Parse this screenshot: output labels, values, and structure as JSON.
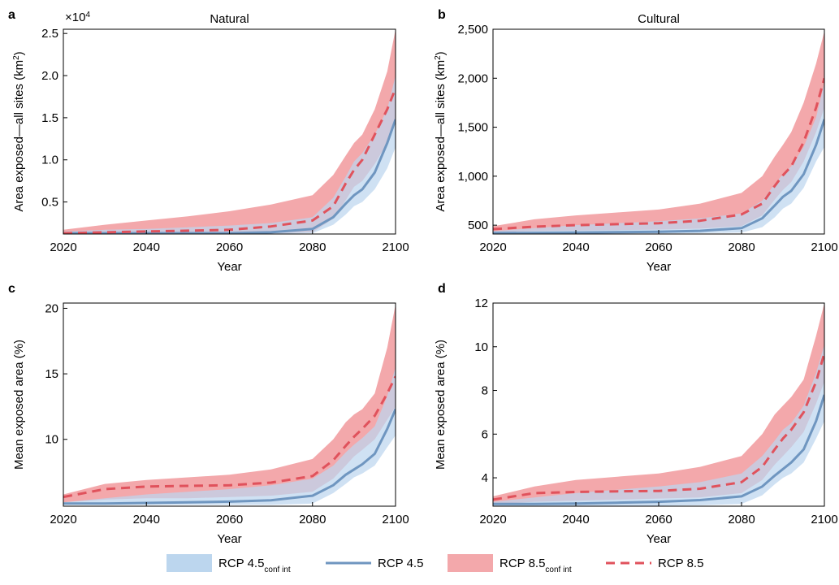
{
  "colors": {
    "rcp45_band": "#bcd6ee",
    "rcp45_line": "#6f96c0",
    "rcp85_band": "#f3a8ab",
    "rcp85_line": "#e0525c",
    "overlap_band": "#c5bcd8"
  },
  "legend": {
    "items": [
      {
        "key": "rcp45ci",
        "base": "RCP 4.5",
        "sub": "conf int"
      },
      {
        "key": "rcp45",
        "base": "RCP 4.5",
        "sub": ""
      },
      {
        "key": "rcp85ci",
        "base": "RCP 8.5",
        "sub": "conf int"
      },
      {
        "key": "rcp85",
        "base": "RCP 8.5",
        "sub": ""
      }
    ]
  },
  "chart_data": [
    {
      "type": "area",
      "panel_label": "a",
      "title": "Natural",
      "xlabel": "Year",
      "ylabel_main": "Area exposed—all sites (km",
      "ylabel_sup": "2",
      "ylabel_end": ")",
      "multiplier_base": "×10",
      "multiplier_exp": "4",
      "xlim": [
        2020,
        2100
      ],
      "ylim": [
        0.12,
        2.55
      ],
      "xticks": [
        2020,
        2040,
        2060,
        2080,
        2100
      ],
      "xtick_labels": [
        "2020",
        "2040",
        "2060",
        "2080",
        "2100"
      ],
      "yticks": [
        0.5,
        1.0,
        1.5,
        2.0,
        2.5
      ],
      "ytick_labels": [
        "0.5",
        "1.0",
        "1.5",
        "2.0",
        "2.5"
      ],
      "x": [
        2020,
        2030,
        2040,
        2050,
        2060,
        2070,
        2080,
        2085,
        2088,
        2090,
        2092,
        2095,
        2098,
        2100
      ],
      "series": [
        {
          "name": "RCP 4.5",
          "values": [
            0.13,
            0.13,
            0.13,
            0.13,
            0.13,
            0.14,
            0.18,
            0.32,
            0.48,
            0.58,
            0.65,
            0.85,
            1.2,
            1.48
          ]
        },
        {
          "name": "RCP 8.5",
          "values": [
            0.13,
            0.14,
            0.15,
            0.16,
            0.17,
            0.21,
            0.28,
            0.45,
            0.72,
            0.88,
            1.0,
            1.3,
            1.6,
            1.85
          ]
        }
      ],
      "bands": [
        {
          "name": "RCP 4.5 conf int",
          "lower": [
            0.12,
            0.12,
            0.12,
            0.12,
            0.12,
            0.12,
            0.13,
            0.23,
            0.35,
            0.45,
            0.5,
            0.65,
            0.9,
            1.15
          ],
          "upper": [
            0.15,
            0.17,
            0.18,
            0.2,
            0.22,
            0.25,
            0.32,
            0.55,
            0.8,
            0.98,
            1.08,
            1.3,
            1.6,
            2.0
          ]
        },
        {
          "name": "RCP 8.5 conf int",
          "lower": [
            0.12,
            0.12,
            0.12,
            0.12,
            0.12,
            0.13,
            0.14,
            0.3,
            0.52,
            0.68,
            0.75,
            0.95,
            1.2,
            1.5
          ],
          "upper": [
            0.17,
            0.23,
            0.28,
            0.33,
            0.39,
            0.47,
            0.58,
            0.82,
            1.05,
            1.2,
            1.3,
            1.6,
            2.05,
            2.55
          ]
        }
      ]
    },
    {
      "type": "area",
      "panel_label": "b",
      "title": "Cultural",
      "xlabel": "Year",
      "ylabel_main": "Area exposed—all sites (km",
      "ylabel_sup": "2",
      "ylabel_end": ")",
      "multiplier_base": "",
      "multiplier_exp": "",
      "xlim": [
        2020,
        2100
      ],
      "ylim": [
        410,
        2500
      ],
      "xticks": [
        2020,
        2040,
        2060,
        2080,
        2100
      ],
      "xtick_labels": [
        "2020",
        "2040",
        "2060",
        "2080",
        "2100"
      ],
      "yticks": [
        500,
        1000,
        1500,
        2000,
        2500
      ],
      "ytick_labels": [
        "500",
        "1,000",
        "1,500",
        "2,000",
        "2,500"
      ],
      "x": [
        2020,
        2030,
        2040,
        2050,
        2060,
        2070,
        2080,
        2085,
        2088,
        2090,
        2092,
        2095,
        2098,
        2100
      ],
      "series": [
        {
          "name": "RCP 4.5",
          "values": [
            420,
            422,
            425,
            428,
            433,
            442,
            470,
            570,
            700,
            790,
            850,
            1020,
            1320,
            1580
          ]
        },
        {
          "name": "RCP 8.5",
          "values": [
            460,
            485,
            500,
            510,
            520,
            545,
            610,
            720,
            900,
            1010,
            1100,
            1350,
            1700,
            2000
          ]
        }
      ],
      "bands": [
        {
          "name": "RCP 4.5 conf int",
          "lower": [
            415,
            415,
            415,
            415,
            415,
            418,
            425,
            480,
            580,
            670,
            720,
            880,
            1150,
            1300
          ],
          "upper": [
            440,
            470,
            500,
            520,
            540,
            570,
            620,
            750,
            920,
            1020,
            1100,
            1300,
            1600,
            1950
          ]
        },
        {
          "name": "RCP 8.5 conf int",
          "lower": [
            430,
            440,
            445,
            450,
            455,
            465,
            490,
            600,
            760,
            860,
            940,
            1150,
            1450,
            1700
          ],
          "upper": [
            490,
            560,
            600,
            630,
            660,
            720,
            830,
            1000,
            1200,
            1320,
            1450,
            1750,
            2150,
            2480
          ]
        }
      ]
    },
    {
      "type": "area",
      "panel_label": "c",
      "title": "",
      "xlabel": "Year",
      "ylabel_main": "Mean exposed area (%)",
      "ylabel_sup": "",
      "ylabel_end": "",
      "multiplier_base": "",
      "multiplier_exp": "",
      "xlim": [
        2020,
        2100
      ],
      "ylim": [
        4.9,
        20.4
      ],
      "xticks": [
        2020,
        2040,
        2060,
        2080,
        2100
      ],
      "xtick_labels": [
        "2020",
        "2040",
        "2060",
        "2080",
        "2100"
      ],
      "yticks": [
        10,
        15,
        20
      ],
      "ytick_labels": [
        "10",
        "15",
        "20"
      ],
      "x": [
        2020,
        2030,
        2040,
        2050,
        2060,
        2070,
        2080,
        2085,
        2088,
        2090,
        2092,
        2095,
        2098,
        2100
      ],
      "series": [
        {
          "name": "RCP 4.5",
          "values": [
            5.1,
            5.1,
            5.15,
            5.2,
            5.25,
            5.35,
            5.7,
            6.5,
            7.3,
            7.7,
            8.1,
            8.9,
            10.8,
            12.3
          ]
        },
        {
          "name": "RCP 8.5",
          "values": [
            5.6,
            6.2,
            6.4,
            6.45,
            6.5,
            6.7,
            7.2,
            8.4,
            9.5,
            10.2,
            10.8,
            11.8,
            13.5,
            14.8
          ]
        }
      ],
      "bands": [
        {
          "name": "RCP 4.5 conf int",
          "lower": [
            5.0,
            5.0,
            5.0,
            5.0,
            5.0,
            5.0,
            5.1,
            5.9,
            6.6,
            7.1,
            7.4,
            8.0,
            9.4,
            10.3
          ],
          "upper": [
            5.2,
            5.5,
            5.8,
            6.0,
            6.2,
            6.5,
            7.0,
            8.0,
            9.0,
            9.6,
            10.1,
            11.0,
            13.3,
            15.5
          ]
        },
        {
          "name": "RCP 8.5 conf int",
          "lower": [
            5.2,
            5.4,
            5.5,
            5.5,
            5.6,
            5.7,
            6.0,
            7.0,
            8.0,
            8.7,
            9.2,
            10.0,
            11.5,
            12.5
          ],
          "upper": [
            5.8,
            6.6,
            6.9,
            7.1,
            7.3,
            7.7,
            8.5,
            10.0,
            11.3,
            11.9,
            12.3,
            13.5,
            17.0,
            20.3
          ]
        }
      ]
    },
    {
      "type": "area",
      "panel_label": "d",
      "title": "",
      "xlabel": "Year",
      "ylabel_main": "Mean exposed area (%)",
      "ylabel_sup": "",
      "ylabel_end": "",
      "multiplier_base": "",
      "multiplier_exp": "",
      "xlim": [
        2020,
        2100
      ],
      "ylim": [
        2.7,
        12.0
      ],
      "xticks": [
        2020,
        2040,
        2060,
        2080,
        2100
      ],
      "xtick_labels": [
        "2020",
        "2040",
        "2060",
        "2080",
        "2100"
      ],
      "yticks": [
        4,
        6,
        8,
        10,
        12
      ],
      "ytick_labels": [
        "4",
        "6",
        "8",
        "10",
        "12"
      ],
      "x": [
        2020,
        2030,
        2040,
        2050,
        2060,
        2070,
        2080,
        2085,
        2088,
        2090,
        2092,
        2095,
        2098,
        2100
      ],
      "series": [
        {
          "name": "RCP 4.5",
          "values": [
            2.8,
            2.8,
            2.82,
            2.86,
            2.9,
            2.98,
            3.15,
            3.6,
            4.1,
            4.4,
            4.7,
            5.3,
            6.6,
            7.8
          ]
        },
        {
          "name": "RCP 8.5",
          "values": [
            3.0,
            3.3,
            3.35,
            3.38,
            3.4,
            3.5,
            3.8,
            4.5,
            5.3,
            5.8,
            6.2,
            7.0,
            8.4,
            9.7
          ]
        }
      ],
      "bands": [
        {
          "name": "RCP 4.5 conf int",
          "lower": [
            2.72,
            2.72,
            2.72,
            2.72,
            2.72,
            2.74,
            2.8,
            3.2,
            3.7,
            4.0,
            4.2,
            4.7,
            5.8,
            6.6
          ],
          "upper": [
            2.9,
            3.1,
            3.3,
            3.45,
            3.6,
            3.8,
            4.2,
            5.0,
            5.7,
            6.2,
            6.5,
            7.3,
            8.8,
            10.1
          ]
        },
        {
          "name": "RCP 8.5 conf int",
          "lower": [
            2.8,
            2.9,
            2.95,
            3.0,
            3.05,
            3.1,
            3.3,
            3.9,
            4.6,
            5.0,
            5.4,
            6.1,
            7.4,
            8.4
          ],
          "upper": [
            3.15,
            3.6,
            3.9,
            4.05,
            4.2,
            4.5,
            5.0,
            6.0,
            6.9,
            7.3,
            7.7,
            8.5,
            10.5,
            12.0
          ]
        }
      ]
    }
  ]
}
